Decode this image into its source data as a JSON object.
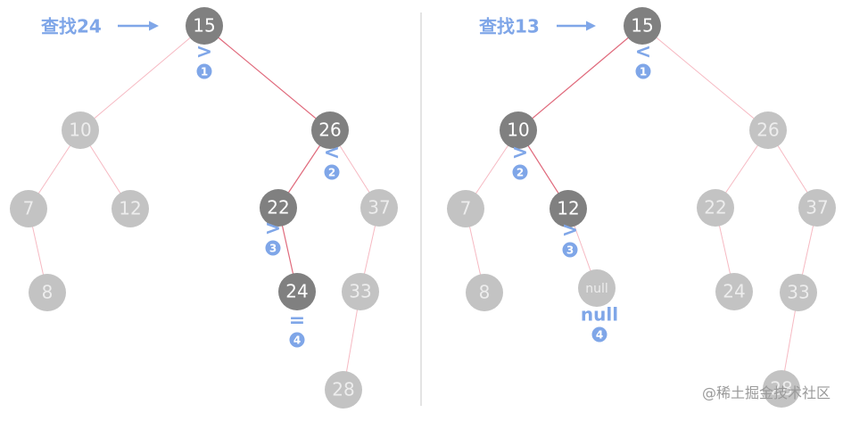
{
  "watermark": "@稀土掘金技术社区",
  "colors": {
    "active_node": "#808080",
    "inactive_node": "#c3c3c3",
    "node_text_active": "#ffffff",
    "node_text_inactive": "#ededed",
    "edge_normal": "#f6b9c2",
    "edge_search": "#e06a7c",
    "accent_blue": "#7fa6e8",
    "divider": "#c8c8c8"
  },
  "panels": [
    {
      "id": "left",
      "query_label": "查找24",
      "nodes": [
        {
          "id": "n15",
          "label": "15",
          "active": true
        },
        {
          "id": "n10",
          "label": "10",
          "active": false
        },
        {
          "id": "n26",
          "label": "26",
          "active": true
        },
        {
          "id": "n7",
          "label": "7",
          "active": false
        },
        {
          "id": "n12",
          "label": "12",
          "active": false
        },
        {
          "id": "n22",
          "label": "22",
          "active": true
        },
        {
          "id": "n37",
          "label": "37",
          "active": false
        },
        {
          "id": "n8",
          "label": "8",
          "active": false
        },
        {
          "id": "n24",
          "label": "24",
          "active": true
        },
        {
          "id": "n33",
          "label": "33",
          "active": false
        },
        {
          "id": "n28",
          "label": "28",
          "active": false
        }
      ],
      "edges": [
        {
          "from": "n15",
          "to": "n10",
          "search": false
        },
        {
          "from": "n15",
          "to": "n26",
          "search": true
        },
        {
          "from": "n10",
          "to": "n7",
          "search": false
        },
        {
          "from": "n10",
          "to": "n12",
          "search": false
        },
        {
          "from": "n26",
          "to": "n22",
          "search": true
        },
        {
          "from": "n26",
          "to": "n37",
          "search": false
        },
        {
          "from": "n7",
          "to": "n8",
          "search": false
        },
        {
          "from": "n22",
          "to": "n24",
          "search": true
        },
        {
          "from": "n37",
          "to": "n33",
          "search": false
        },
        {
          "from": "n33",
          "to": "n28",
          "search": false
        }
      ],
      "steps": [
        {
          "node": "n15",
          "symbol": ">",
          "number": "1"
        },
        {
          "node": "n26",
          "symbol": "<",
          "number": "2"
        },
        {
          "node": "n22",
          "symbol": ">",
          "number": "3"
        },
        {
          "node": "n24",
          "symbol": "=",
          "number": "4"
        }
      ]
    },
    {
      "id": "right",
      "query_label": "查找13",
      "nodes": [
        {
          "id": "m15",
          "label": "15",
          "active": true
        },
        {
          "id": "m10",
          "label": "10",
          "active": true
        },
        {
          "id": "m26",
          "label": "26",
          "active": false
        },
        {
          "id": "m7",
          "label": "7",
          "active": false
        },
        {
          "id": "m12",
          "label": "12",
          "active": true
        },
        {
          "id": "m22",
          "label": "22",
          "active": false
        },
        {
          "id": "m37",
          "label": "37",
          "active": false
        },
        {
          "id": "m8",
          "label": "8",
          "active": false
        },
        {
          "id": "mnull",
          "label": "null",
          "active": false,
          "small": true
        },
        {
          "id": "m24",
          "label": "24",
          "active": false
        },
        {
          "id": "m33",
          "label": "33",
          "active": false
        },
        {
          "id": "m28",
          "label": "28",
          "active": false
        }
      ],
      "edges": [
        {
          "from": "m15",
          "to": "m10",
          "search": true
        },
        {
          "from": "m15",
          "to": "m26",
          "search": false
        },
        {
          "from": "m10",
          "to": "m7",
          "search": false
        },
        {
          "from": "m10",
          "to": "m12",
          "search": true
        },
        {
          "from": "m26",
          "to": "m22",
          "search": false
        },
        {
          "from": "m26",
          "to": "m37",
          "search": false
        },
        {
          "from": "m7",
          "to": "m8",
          "search": false
        },
        {
          "from": "m12",
          "to": "mnull",
          "search": false
        },
        {
          "from": "m22",
          "to": "m24",
          "search": false
        },
        {
          "from": "m37",
          "to": "m33",
          "search": false
        },
        {
          "from": "m33",
          "to": "m28",
          "search": false
        }
      ],
      "steps": [
        {
          "node": "m15",
          "symbol": "<",
          "number": "1"
        },
        {
          "node": "m10",
          "symbol": ">",
          "number": "2"
        },
        {
          "node": "m12",
          "symbol": ">",
          "number": "3"
        },
        {
          "node": "mnull",
          "symbol": "null",
          "number": "4"
        }
      ]
    }
  ]
}
